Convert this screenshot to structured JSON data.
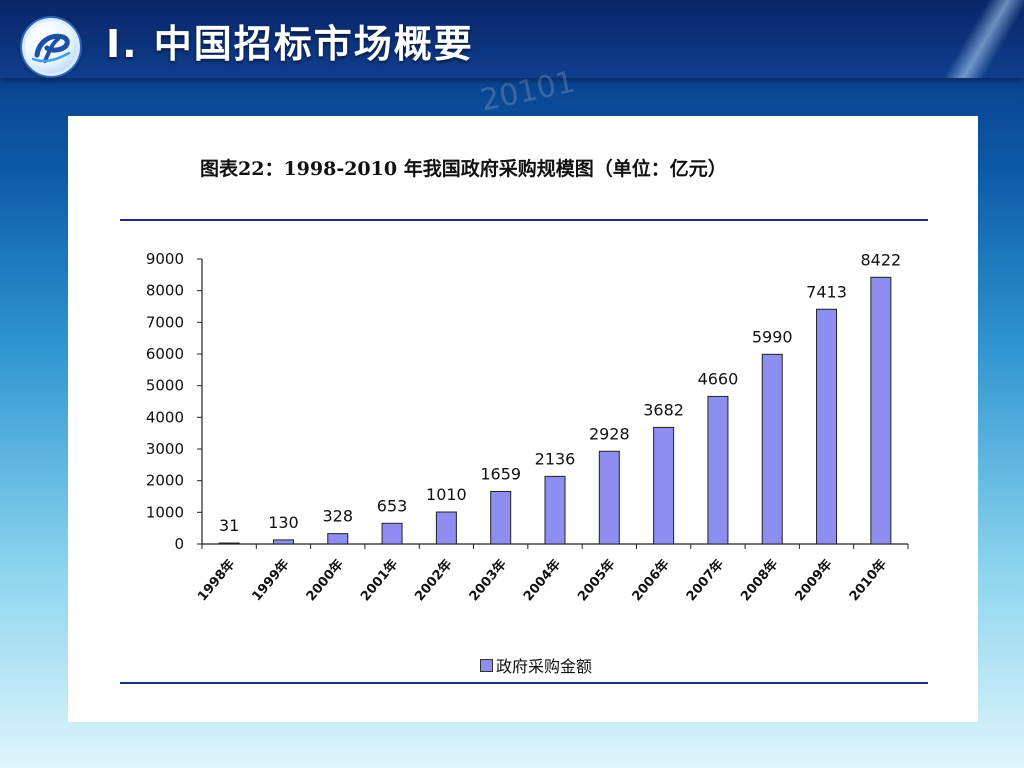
{
  "slide": {
    "title": "Ⅰ. 中国招标市场概要",
    "watermark": "20101"
  },
  "colors": {
    "bar_fill": "#8e8ef0",
    "bar_stroke": "#222222",
    "rule": "#1f2f80"
  },
  "chart_data": {
    "type": "bar",
    "title": "图表22：1998-2010 年我国政府采购规模图（单位：亿元）",
    "categories": [
      "1998年",
      "1999年",
      "2000年",
      "2001年",
      "2002年",
      "2003年",
      "2004年",
      "2005年",
      "2006年",
      "2007年",
      "2008年",
      "2009年",
      "2010年"
    ],
    "series": [
      {
        "name": "政府采购金额",
        "values": [
          31,
          130,
          328,
          653,
          1010,
          1659,
          2136,
          2928,
          3682,
          4660,
          5990,
          7413,
          8422
        ]
      }
    ],
    "ylim": [
      0,
      9000
    ],
    "yticks": [
      0,
      1000,
      2000,
      3000,
      4000,
      5000,
      6000,
      7000,
      8000,
      9000
    ],
    "xlabel": "",
    "ylabel": "",
    "grid": false,
    "legend_position": "bottom"
  }
}
